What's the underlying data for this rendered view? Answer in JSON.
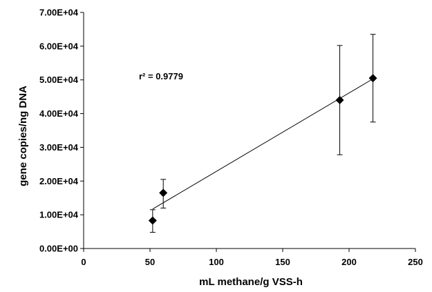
{
  "chart_data": {
    "type": "scatter",
    "title": "",
    "xlabel": "mL methane/g VSS-h",
    "ylabel": "gene copies/ng DNA",
    "xlim": [
      0,
      250
    ],
    "ylim": [
      0,
      70000
    ],
    "x_ticks": [
      0,
      50,
      100,
      150,
      200,
      250
    ],
    "y_ticks": [
      0,
      10000,
      20000,
      30000,
      40000,
      50000,
      60000,
      70000
    ],
    "x_tick_labels": [
      "0",
      "50",
      "100",
      "150",
      "200",
      "250"
    ],
    "y_tick_labels": [
      "0.00E+00",
      "1.00E+04",
      "2.00E+04",
      "3.00E+04",
      "4.00E+04",
      "5.00E+04",
      "6.00E+04",
      "7.00E+04"
    ],
    "grid": false,
    "legend": "none",
    "marker": "diamond",
    "marker_color": "#000000",
    "series": [
      {
        "x": [
          52,
          60,
          193,
          218
        ],
        "y": [
          8300,
          16500,
          44000,
          50500
        ],
        "error_low": [
          4800,
          12000,
          27800,
          37500
        ],
        "error_high": [
          11500,
          20500,
          60200,
          63500
        ]
      }
    ],
    "trendline": {
      "type": "linear",
      "x": [
        52,
        218
      ],
      "y": [
        11700,
        50300
      ]
    },
    "annotation": "r² = 0.9779"
  }
}
